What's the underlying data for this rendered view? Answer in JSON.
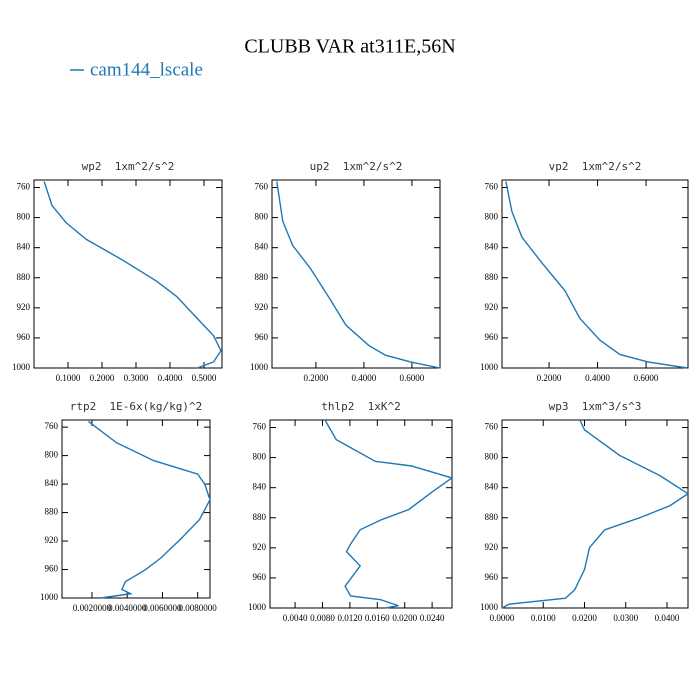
{
  "title": "CLUBB VAR at311E,56N",
  "chart_data": [
    {
      "type": "line",
      "title": "wp2  1xm^2/s^2",
      "y": [
        752,
        784,
        807,
        829,
        855,
        884,
        905,
        934,
        957,
        977,
        992,
        1000
      ],
      "series": [
        {
          "name": "cam144_lscale",
          "color": "#1f77b4",
          "values": [
            0.03,
            0.053,
            0.095,
            0.154,
            0.255,
            0.359,
            0.42,
            0.48,
            0.528,
            0.55,
            0.528,
            0.48
          ]
        }
      ],
      "xlim": [
        0,
        0.553
      ],
      "xticks": [
        {
          "value": 0.1,
          "label": "0.1000"
        },
        {
          "value": 0.2,
          "label": "0.2000"
        },
        {
          "value": 0.3,
          "label": "0.3000"
        },
        {
          "value": 0.4,
          "label": "0.4000"
        },
        {
          "value": 0.5,
          "label": "0.5000"
        }
      ],
      "ylim": [
        1000,
        750
      ],
      "yticks": [
        760,
        800,
        840,
        880,
        920,
        960,
        1000
      ]
    },
    {
      "type": "line",
      "title": "up2  1xm^2/s^2",
      "y": [
        752,
        805,
        837,
        868,
        910,
        943,
        970,
        983,
        992,
        1000
      ],
      "series": [
        {
          "color": "#1f77b4",
          "values": [
            0.037,
            0.062,
            0.103,
            0.178,
            0.262,
            0.325,
            0.42,
            0.49,
            0.594,
            0.717
          ]
        }
      ],
      "xlim": [
        0.017,
        0.717
      ],
      "xticks": [
        {
          "value": 0.2,
          "label": "0.2000"
        },
        {
          "value": 0.4,
          "label": "0.4000"
        },
        {
          "value": 0.6,
          "label": "0.6000"
        }
      ],
      "ylim": [
        1000,
        750
      ],
      "yticks": [
        760,
        800,
        840,
        880,
        920,
        960,
        1000
      ]
    },
    {
      "type": "line",
      "title": "vp2  1xm^2/s^2",
      "y": [
        752,
        792,
        826,
        860,
        897,
        934,
        963,
        982,
        992,
        1000
      ],
      "series": [
        {
          "color": "#1f77b4",
          "values": [
            0.022,
            0.047,
            0.088,
            0.17,
            0.265,
            0.327,
            0.41,
            0.492,
            0.608,
            0.77
          ]
        }
      ],
      "xlim": [
        0.006,
        0.773
      ],
      "xticks": [
        {
          "value": 0.2,
          "label": "0.2000"
        },
        {
          "value": 0.4,
          "label": "0.4000"
        },
        {
          "value": 0.6,
          "label": "0.6000"
        }
      ],
      "ylim": [
        1000,
        750
      ],
      "yticks": [
        760,
        800,
        840,
        880,
        920,
        960,
        1000
      ]
    },
    {
      "type": "line",
      "title": "rtp2  1E-6x(kg/kg)^2",
      "y": [
        752,
        782,
        807,
        826,
        840,
        862,
        890,
        918,
        944,
        961,
        977,
        988,
        994,
        1000
      ],
      "series": [
        {
          "color": "#1f77b4",
          "values": [
            0.0018,
            0.0034,
            0.0055,
            0.008,
            0.0084,
            0.0087,
            0.0081,
            0.007,
            0.0059,
            0.005,
            0.0039,
            0.0037,
            0.0042,
            0.0025
          ]
        }
      ],
      "xlim": [
        0.0003,
        0.0087
      ],
      "xticks": [
        {
          "value": 0.002,
          "label": "0.0020000"
        },
        {
          "value": 0.004,
          "label": "0.0040000"
        },
        {
          "value": 0.006,
          "label": "0.0060000"
        },
        {
          "value": 0.008,
          "label": "0.0080000"
        }
      ],
      "ylim": [
        1000,
        750
      ],
      "yticks": [
        760,
        800,
        840,
        880,
        920,
        960,
        1000
      ]
    },
    {
      "type": "line",
      "title": "thlp2  1xK^2",
      "y": [
        749,
        776,
        805,
        811,
        827,
        845,
        869,
        883,
        896,
        915,
        925,
        944,
        971,
        984,
        989,
        997,
        1000
      ],
      "series": [
        {
          "color": "#1f77b4",
          "values": [
            0.0083,
            0.01,
            0.0157,
            0.0209,
            0.0269,
            0.0241,
            0.0206,
            0.0165,
            0.0135,
            0.0121,
            0.0115,
            0.0135,
            0.0113,
            0.0121,
            0.0165,
            0.0191,
            0.0172
          ]
        }
      ],
      "xlim": [
        0.00034,
        0.0269
      ],
      "xticks": [
        {
          "value": 0.004,
          "label": "0.0040"
        },
        {
          "value": 0.008,
          "label": "0.0080"
        },
        {
          "value": 0.012,
          "label": "0.0120"
        },
        {
          "value": 0.016,
          "label": "0.0160"
        },
        {
          "value": 0.02,
          "label": "0.0200"
        },
        {
          "value": 0.024,
          "label": "0.0240"
        }
      ],
      "ylim": [
        1000,
        750
      ],
      "yticks": [
        760,
        800,
        840,
        880,
        920,
        960,
        1000
      ]
    },
    {
      "type": "line",
      "title": "wp3  1xm^3/s^3",
      "y": [
        749,
        763,
        797,
        824,
        848,
        864,
        880,
        896,
        920,
        949,
        976,
        987,
        995,
        1000
      ],
      "series": [
        {
          "color": "#1f77b4",
          "values": [
            0.0188,
            0.02,
            0.0285,
            0.0383,
            0.0451,
            0.0407,
            0.0334,
            0.0249,
            0.0212,
            0.02,
            0.0176,
            0.0154,
            0.0017,
            0
          ]
        }
      ],
      "xlim": [
        0,
        0.0451
      ],
      "xticks": [
        {
          "value": 0,
          "label": "0.0000"
        },
        {
          "value": 0.01,
          "label": "0.0100"
        },
        {
          "value": 0.02,
          "label": "0.0200"
        },
        {
          "value": 0.03,
          "label": "0.0300"
        },
        {
          "value": 0.04,
          "label": "0.0400"
        }
      ],
      "ylim": [
        1000,
        750
      ],
      "yticks": [
        760,
        800,
        840,
        880,
        920,
        960,
        1000
      ]
    }
  ]
}
